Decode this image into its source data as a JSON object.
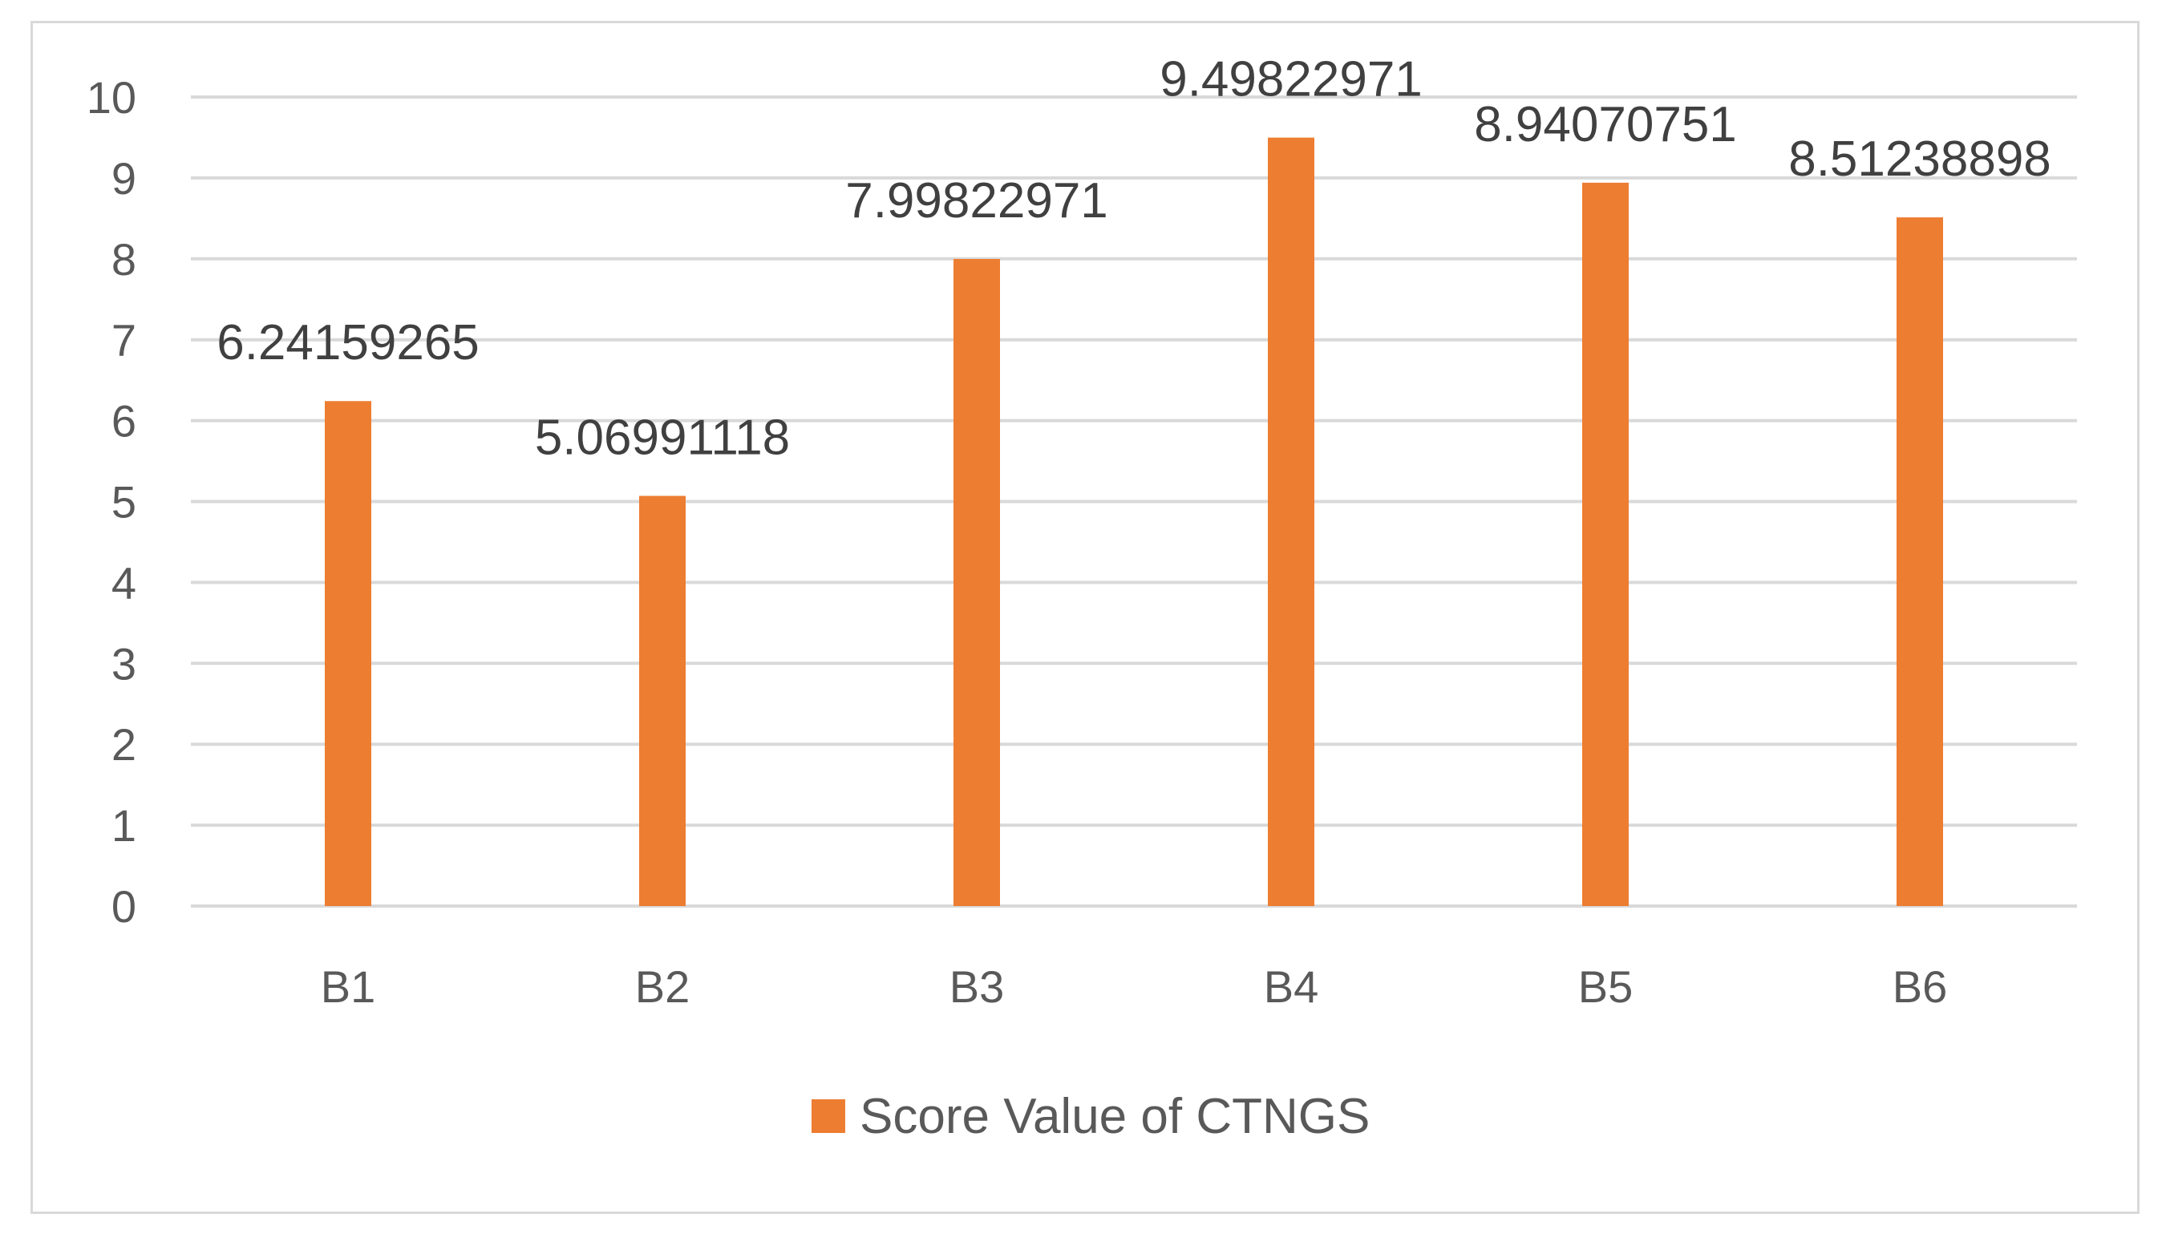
{
  "chart_data": {
    "type": "bar",
    "title": "",
    "xlabel": "",
    "ylabel": "",
    "categories": [
      "B1",
      "B2",
      "B3",
      "B4",
      "B5",
      "B6"
    ],
    "series": [
      {
        "name": "Score Value of CTNGS",
        "values": [
          6.24159265,
          5.06991118,
          7.99822971,
          9.49822971,
          8.94070751,
          8.51238898
        ],
        "data_labels": [
          "6.24159265",
          "5.06991118",
          "7.99822971",
          "9.49822971",
          "8.94070751",
          "8.51238898"
        ],
        "color": "#ed7d31"
      }
    ],
    "ylim": [
      0,
      10
    ],
    "yticks": [
      "0",
      "1",
      "2",
      "3",
      "4",
      "5",
      "6",
      "7",
      "8",
      "9",
      "10"
    ],
    "grid": true,
    "legend_position": "bottom",
    "gridline_color": "#d9d9d9",
    "text_color": "#595959"
  }
}
